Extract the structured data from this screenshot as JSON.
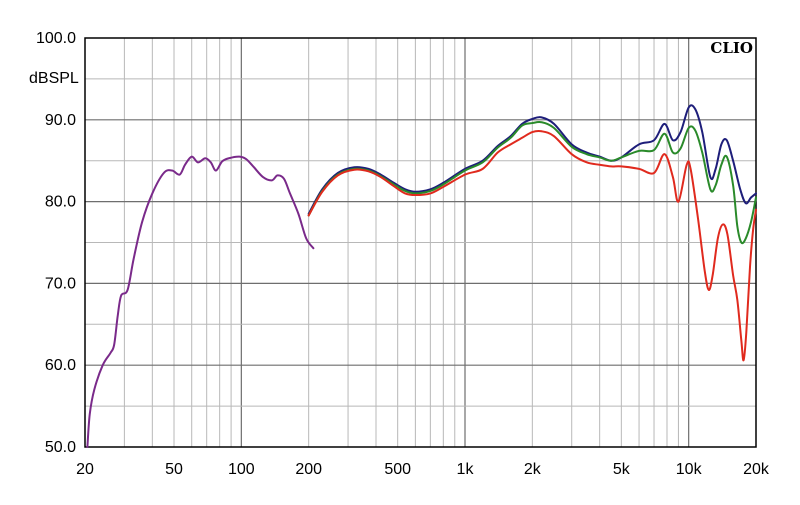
{
  "chart_data": {
    "type": "line",
    "brand": "CLIO",
    "ylabel": "dBSPL",
    "xscale": "log",
    "xlim": [
      20,
      20000
    ],
    "ylim": [
      50,
      100
    ],
    "grid": true,
    "x_ticks": [
      {
        "value": 20,
        "label": "20"
      },
      {
        "value": 50,
        "label": "50"
      },
      {
        "value": 100,
        "label": "100"
      },
      {
        "value": 200,
        "label": "200"
      },
      {
        "value": 500,
        "label": "500"
      },
      {
        "value": 1000,
        "label": "1k"
      },
      {
        "value": 2000,
        "label": "2k"
      },
      {
        "value": 5000,
        "label": "5k"
      },
      {
        "value": 10000,
        "label": "10k"
      },
      {
        "value": 20000,
        "label": "20k"
      }
    ],
    "y_ticks": [
      {
        "value": 100,
        "label": "100.0"
      },
      {
        "value": 90,
        "label": "90.0"
      },
      {
        "value": 80,
        "label": "80.0"
      },
      {
        "value": 70,
        "label": "70.0"
      },
      {
        "value": 60,
        "label": "60.0"
      },
      {
        "value": 50,
        "label": "50.0"
      }
    ],
    "series": [
      {
        "color": "#7a2a8a",
        "points": [
          [
            20.5,
            50
          ],
          [
            21,
            54
          ],
          [
            22,
            57
          ],
          [
            24,
            60
          ],
          [
            26,
            61.5
          ],
          [
            27,
            62.5
          ],
          [
            28,
            66
          ],
          [
            29,
            68.5
          ],
          [
            31,
            69.2
          ],
          [
            33,
            73
          ],
          [
            36,
            77.5
          ],
          [
            40,
            81
          ],
          [
            45,
            83.5
          ],
          [
            49,
            83.8
          ],
          [
            53,
            83.3
          ],
          [
            56,
            84.5
          ],
          [
            60,
            85.5
          ],
          [
            64,
            84.8
          ],
          [
            69,
            85.3
          ],
          [
            73,
            84.8
          ],
          [
            77,
            83.8
          ],
          [
            82,
            84.9
          ],
          [
            88,
            85.3
          ],
          [
            98,
            85.5
          ],
          [
            105,
            85.2
          ],
          [
            113,
            84.3
          ],
          [
            125,
            83
          ],
          [
            137,
            82.6
          ],
          [
            145,
            83.2
          ],
          [
            155,
            82.8
          ],
          [
            165,
            81
          ],
          [
            180,
            78.5
          ],
          [
            195,
            75.5
          ],
          [
            210,
            74.3
          ]
        ]
      },
      {
        "color": "#1e1e7a",
        "points": [
          [
            200,
            78.5
          ],
          [
            230,
            81.5
          ],
          [
            270,
            83.5
          ],
          [
            320,
            84.2
          ],
          [
            370,
            84
          ],
          [
            420,
            83.3
          ],
          [
            480,
            82.3
          ],
          [
            540,
            81.5
          ],
          [
            600,
            81.2
          ],
          [
            700,
            81.5
          ],
          [
            800,
            82.3
          ],
          [
            1000,
            84
          ],
          [
            1200,
            85
          ],
          [
            1400,
            86.8
          ],
          [
            1600,
            88
          ],
          [
            1800,
            89.5
          ],
          [
            2000,
            90.1
          ],
          [
            2200,
            90.3
          ],
          [
            2500,
            89.5
          ],
          [
            3000,
            87
          ],
          [
            3500,
            86
          ],
          [
            4000,
            85.5
          ],
          [
            4500,
            85
          ],
          [
            5000,
            85.4
          ],
          [
            6000,
            87
          ],
          [
            7000,
            87.5
          ],
          [
            7800,
            89.5
          ],
          [
            8500,
            87.5
          ],
          [
            9200,
            88.5
          ],
          [
            10000,
            91.5
          ],
          [
            10700,
            91.3
          ],
          [
            11500,
            88.5
          ],
          [
            12500,
            83
          ],
          [
            13200,
            84
          ],
          [
            14000,
            87
          ],
          [
            14800,
            87.5
          ],
          [
            15800,
            85
          ],
          [
            17000,
            81.5
          ],
          [
            18000,
            79.8
          ],
          [
            19000,
            80.5
          ],
          [
            20000,
            81
          ]
        ]
      },
      {
        "color": "#2a8a2a",
        "points": [
          [
            200,
            78.3
          ],
          [
            230,
            81.3
          ],
          [
            270,
            83.3
          ],
          [
            320,
            84
          ],
          [
            370,
            83.8
          ],
          [
            420,
            83.1
          ],
          [
            480,
            82.1
          ],
          [
            540,
            81.3
          ],
          [
            600,
            81
          ],
          [
            700,
            81.3
          ],
          [
            800,
            82.1
          ],
          [
            1000,
            83.8
          ],
          [
            1200,
            84.8
          ],
          [
            1400,
            86.6
          ],
          [
            1600,
            87.8
          ],
          [
            1800,
            89.3
          ],
          [
            2000,
            89.6
          ],
          [
            2200,
            89.7
          ],
          [
            2500,
            89
          ],
          [
            3000,
            86.7
          ],
          [
            3500,
            85.8
          ],
          [
            4000,
            85.4
          ],
          [
            4500,
            85
          ],
          [
            5000,
            85.4
          ],
          [
            6000,
            86.2
          ],
          [
            7000,
            86.3
          ],
          [
            7800,
            88.3
          ],
          [
            8500,
            86
          ],
          [
            9200,
            86.5
          ],
          [
            10000,
            89
          ],
          [
            10700,
            88.7
          ],
          [
            11500,
            86
          ],
          [
            12500,
            81.5
          ],
          [
            13200,
            82
          ],
          [
            14000,
            84.5
          ],
          [
            14800,
            85.5
          ],
          [
            15800,
            82
          ],
          [
            16500,
            77
          ],
          [
            17200,
            75
          ],
          [
            18000,
            75.5
          ],
          [
            19000,
            77.5
          ],
          [
            20000,
            80.5
          ]
        ]
      },
      {
        "color": "#e02a1e",
        "points": [
          [
            200,
            78.3
          ],
          [
            230,
            81.2
          ],
          [
            270,
            83.2
          ],
          [
            320,
            83.9
          ],
          [
            370,
            83.7
          ],
          [
            420,
            83
          ],
          [
            480,
            81.9
          ],
          [
            540,
            81
          ],
          [
            600,
            80.8
          ],
          [
            700,
            81
          ],
          [
            800,
            81.8
          ],
          [
            1000,
            83.3
          ],
          [
            1200,
            84
          ],
          [
            1400,
            86
          ],
          [
            1600,
            87
          ],
          [
            1800,
            87.8
          ],
          [
            2000,
            88.5
          ],
          [
            2200,
            88.6
          ],
          [
            2500,
            88
          ],
          [
            3000,
            85.8
          ],
          [
            3500,
            84.8
          ],
          [
            4000,
            84.5
          ],
          [
            4500,
            84.3
          ],
          [
            5000,
            84.3
          ],
          [
            6000,
            84
          ],
          [
            7000,
            83.5
          ],
          [
            7800,
            85.8
          ],
          [
            8500,
            83
          ],
          [
            9000,
            80
          ],
          [
            9800,
            84.5
          ],
          [
            10200,
            84
          ],
          [
            11000,
            78
          ],
          [
            11800,
            71.5
          ],
          [
            12300,
            69.2
          ],
          [
            12800,
            71
          ],
          [
            13500,
            75.5
          ],
          [
            14200,
            77.2
          ],
          [
            14900,
            76
          ],
          [
            15800,
            71
          ],
          [
            16500,
            68
          ],
          [
            17200,
            63
          ],
          [
            17600,
            60.6
          ],
          [
            18100,
            64
          ],
          [
            18800,
            72
          ],
          [
            19400,
            76.5
          ],
          [
            20000,
            79
          ]
        ]
      }
    ]
  }
}
